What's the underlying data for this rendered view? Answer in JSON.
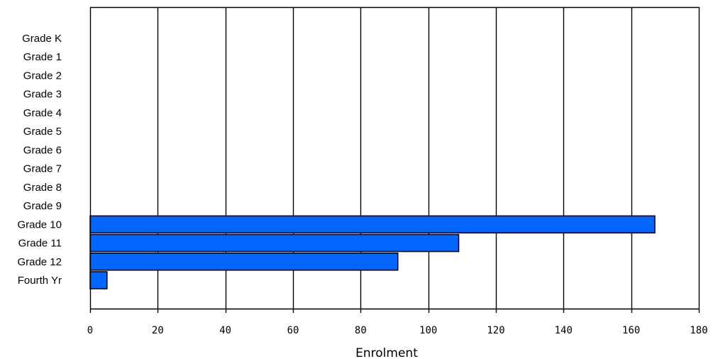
{
  "chart_data": {
    "type": "bar",
    "orientation": "horizontal",
    "categories": [
      "Grade K",
      "Grade 1",
      "Grade 2",
      "Grade 3",
      "Grade 4",
      "Grade 5",
      "Grade 6",
      "Grade 7",
      "Grade 8",
      "Grade 9",
      "Grade 10",
      "Grade 11",
      "Grade 12",
      "Fourth Yr"
    ],
    "values": [
      0,
      0,
      0,
      0,
      0,
      0,
      0,
      0,
      0,
      0,
      167,
      109,
      91,
      5
    ],
    "title": "",
    "xlabel": "Enrolment",
    "ylabel": "",
    "xlim": [
      0,
      180
    ],
    "xticks": [
      0,
      20,
      40,
      60,
      80,
      100,
      120,
      140,
      160,
      180
    ],
    "grid": "vertical",
    "legend": "none",
    "colors": {
      "bar": "#0066ff",
      "bar_stroke": "#000000",
      "grid": "#000000",
      "background": "#ffffff"
    }
  }
}
